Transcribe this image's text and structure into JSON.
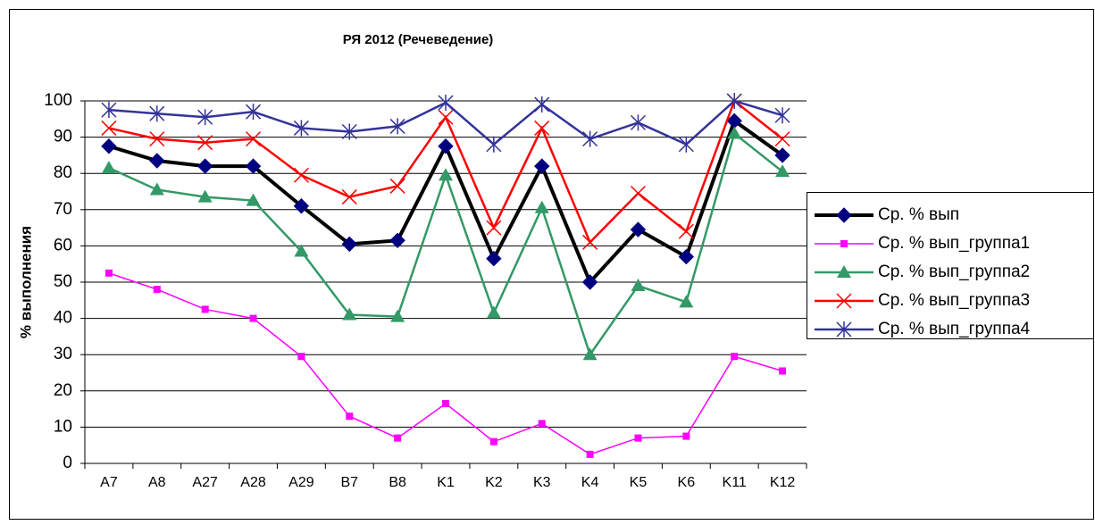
{
  "chart_data": {
    "type": "line",
    "title": "РЯ 2012 (Речеведение)",
    "y_label": "% выполнения",
    "categories": [
      "A7",
      "A8",
      "A27",
      "A28",
      "A29",
      "B7",
      "B8",
      "K1",
      "K2",
      "K3",
      "K4",
      "K5",
      "K6",
      "K11",
      "K12"
    ],
    "series": [
      {
        "name": "Ср. % вып",
        "color": "#000000",
        "marker": "diamond",
        "marker_color": "#000080",
        "width": 4,
        "values": [
          87.5,
          83.5,
          82,
          82,
          71,
          60.5,
          61.5,
          87.5,
          56.5,
          82,
          50,
          64.5,
          57,
          94.5,
          85
        ]
      },
      {
        "name": "Ср. % вып_группа1",
        "color": "#ff00ff",
        "marker": "square",
        "marker_color": "#ff00ff",
        "width": 1.5,
        "values": [
          52.5,
          48,
          42.5,
          40,
          29.5,
          13,
          7,
          16.5,
          6,
          11,
          2.5,
          7,
          7.5,
          29.5,
          25.5
        ]
      },
      {
        "name": "Ср. % вып_группа2",
        "color": "#339966",
        "marker": "triangle",
        "marker_color": "#339966",
        "width": 2.5,
        "values": [
          81.5,
          75.5,
          73.5,
          72.5,
          58.5,
          41,
          40.5,
          79.5,
          41.5,
          70.5,
          30,
          49,
          44.5,
          91,
          80.5
        ]
      },
      {
        "name": "Ср. % вып_группа3",
        "color": "#ff0000",
        "marker": "x",
        "marker_color": "#ff0000",
        "width": 2.5,
        "values": [
          92.5,
          89.5,
          88.5,
          89.5,
          79.5,
          73.5,
          76.5,
          95.5,
          65,
          92.5,
          61,
          74.5,
          64,
          100,
          89.5
        ]
      },
      {
        "name": "Ср. % вып_группа4",
        "color": "#333399",
        "marker": "star",
        "marker_color": "#333399",
        "width": 2.5,
        "values": [
          97.5,
          96.5,
          95.5,
          97,
          92.5,
          91.5,
          93,
          99.5,
          88,
          99,
          89.5,
          94,
          88,
          100,
          96
        ]
      }
    ],
    "ylim": [
      0,
      100
    ],
    "yticks": [
      0,
      10,
      20,
      30,
      40,
      50,
      60,
      70,
      80,
      90,
      100
    ],
    "grid": true,
    "legend": "right"
  }
}
